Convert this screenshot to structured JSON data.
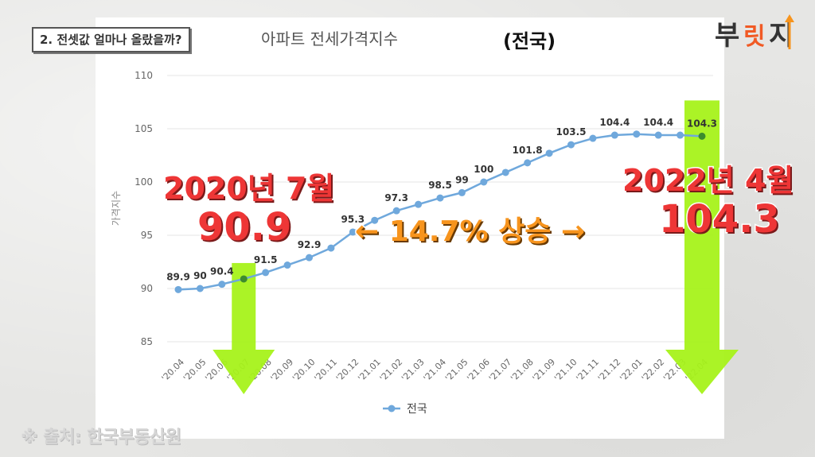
{
  "section_tag": "2. 전셋값 얼마나 올랐을까?",
  "logo_text": [
    "부",
    "릿",
    "지"
  ],
  "source_note": "※ 출처: 한국부동산원",
  "callouts": {
    "left_date": "2020년 7월",
    "left_value": "90.9",
    "right_date": "2022년 4월",
    "right_value": "104.3",
    "center": "← 14.7% 상승 →"
  },
  "colors": {
    "line": "#6fa8dc",
    "highlight_point": "#3d8b2e",
    "highlight_bar": "#a6f21a",
    "red_text": "#ee3636",
    "orange_text": "#f7941d"
  },
  "chart_data": {
    "type": "line",
    "title": "아파트 전세가격지수",
    "title_emphasis": "(전국)",
    "ylabel": "가격지수",
    "ylim": [
      85,
      110
    ],
    "yticks": [
      "85",
      "90",
      "95",
      "100",
      "105",
      "110"
    ],
    "legend": "bottom",
    "categories": [
      "'20.04",
      "'20.05",
      "'20.06",
      "'20.07",
      "'20.08",
      "'20.09",
      "'20.10",
      "'20.11",
      "'20.12",
      "'21.01",
      "'21.02",
      "'21.03",
      "'21.04",
      "'21.05",
      "'21.06",
      "'21.07",
      "'21.08",
      "'21.09",
      "'21.10",
      "'21.11",
      "'21.12",
      "'22.01",
      "'22.02",
      "'22.03",
      "'22.04"
    ],
    "series": [
      {
        "name": "전국",
        "values": [
          89.9,
          90.0,
          90.4,
          90.9,
          91.5,
          92.2,
          92.9,
          93.8,
          95.3,
          96.4,
          97.3,
          97.9,
          98.5,
          99.0,
          100.0,
          100.9,
          101.8,
          102.7,
          103.5,
          104.1,
          104.4,
          104.5,
          104.4,
          104.4,
          104.3
        ]
      }
    ],
    "data_labels": [
      {
        "index": 0,
        "text": "89.9"
      },
      {
        "index": 1,
        "text": "90"
      },
      {
        "index": 2,
        "text": "90.4"
      },
      {
        "index": 4,
        "text": "91.5"
      },
      {
        "index": 6,
        "text": "92.9"
      },
      {
        "index": 8,
        "text": "95.3"
      },
      {
        "index": 10,
        "text": "97.3"
      },
      {
        "index": 12,
        "text": "98.5"
      },
      {
        "index": 13,
        "text": "99"
      },
      {
        "index": 14,
        "text": "100"
      },
      {
        "index": 16,
        "text": "101.8"
      },
      {
        "index": 18,
        "text": "103.5"
      },
      {
        "index": 20,
        "text": "104.4"
      },
      {
        "index": 22,
        "text": "104.4"
      },
      {
        "index": 24,
        "text": "104.3"
      }
    ],
    "highlight_indices": [
      3,
      24
    ]
  }
}
